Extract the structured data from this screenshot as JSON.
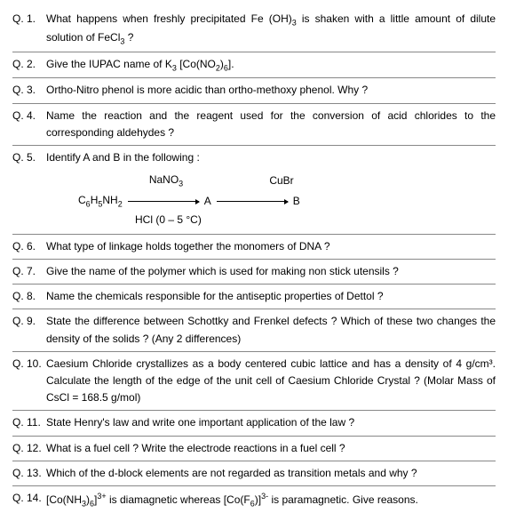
{
  "questions": [
    {
      "num": "Q. 1.",
      "text": "What happens when freshly precipitated Fe (OH)<sub>3</sub> is shaken with a little amount of dilute solution of FeCl<sub>3</sub> ?"
    },
    {
      "num": "Q. 2.",
      "text": "Give the IUPAC name of K<sub>3</sub> [Co(NO<sub>2</sub>)<sub>6</sub>]."
    },
    {
      "num": "Q. 3.",
      "text": "Ortho-Nitro phenol is more acidic than ortho-methoxy phenol. Why ?"
    },
    {
      "num": "Q. 4.",
      "text": "Name the reaction and the reagent used for the conversion of acid chlorides to the corresponding aldehydes ?"
    },
    {
      "num": "Q. 5.",
      "text": "Identify A and B in the following :",
      "reaction": true
    },
    {
      "num": "Q. 6.",
      "text": "What type of linkage holds together the monomers of DNA ?"
    },
    {
      "num": "Q. 7.",
      "text": "Give the name of the polymer which is used for making non stick utensils ?"
    },
    {
      "num": "Q. 8.",
      "text": "Name the chemicals responsible for the antiseptic properties of Dettol ?"
    },
    {
      "num": "Q. 9.",
      "text": "State the difference between Schottky and Frenkel defects ? Which of these two changes the density of the solids ? (Any 2 differences)"
    },
    {
      "num": "Q. 10.",
      "text": "Caesium Chloride crystallizes as a body centered cubic lattice and has a density of 4 g/cm³. Calculate the length of the edge of the unit cell of Caesium Chloride Crystal ? (Molar Mass of CsCl = 168.5 g/mol)"
    },
    {
      "num": "Q. 11.",
      "text": "State Henry's law and write one important application of the law ?"
    },
    {
      "num": "Q. 12.",
      "text": "What is a fuel cell ? Write the electrode reactions in a fuel cell ?"
    },
    {
      "num": "Q. 13.",
      "text": "Which of the d-block elements are not regarded as transition metals and why ?"
    },
    {
      "num": "Q. 14.",
      "text": "[Co(NH<sub>3</sub>)<sub>6</sub>]<sup>3+</sup> is diamagnetic whereas [Co(F<sub>6</sub>)]<sup>3-</sup> is paramagnetic. Give reasons."
    }
  ],
  "reaction": {
    "start": "C<sub>6</sub>H<sub>5</sub>NH<sub>2</sub>",
    "reagent1_top": "NaNO<sub>3</sub>",
    "reagent1_bottom": "HCl (0 – 5 °C)",
    "mid": "A",
    "reagent2_top": "CuBr",
    "end": "B"
  }
}
